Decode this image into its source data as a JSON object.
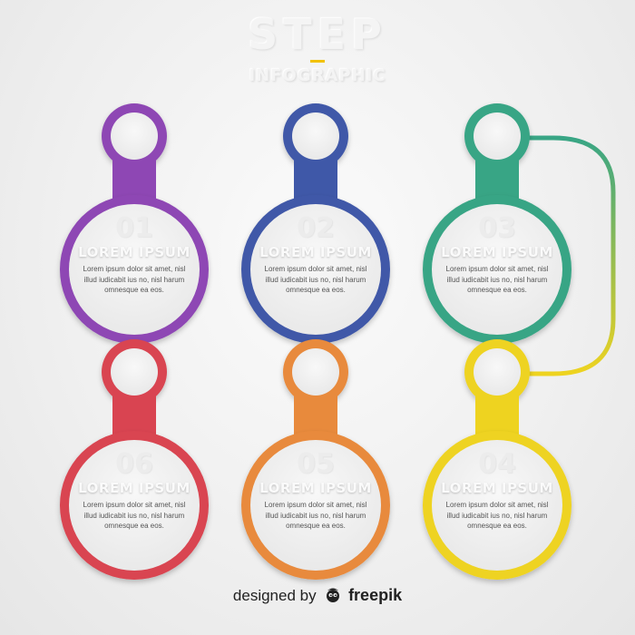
{
  "header": {
    "title": "STEP",
    "subtitle": "INFOGRAPHIC"
  },
  "steps": [
    {
      "number": "01",
      "heading": "LOREM IPSUM",
      "body": "Lorem ipsum dolor sit amet, nisl illud iudicabit ius no, nisl harum omnesque ea eos.",
      "color": "#8e47b4"
    },
    {
      "number": "02",
      "heading": "LOREM IPSUM",
      "body": "Lorem ipsum dolor sit amet, nisl illud iudicabit ius no, nisl harum omnesque ea eos.",
      "color": "#3f58a8"
    },
    {
      "number": "03",
      "heading": "LOREM IPSUM",
      "body": "Lorem ipsum dolor sit amet, nisl illud iudicabit ius no, nisl harum omnesque ea eos.",
      "color": "#38a585"
    },
    {
      "number": "04",
      "heading": "LOREM IPSUM",
      "body": "Lorem ipsum dolor sit amet, nisl illud iudicabit ius no, nisl harum omnesque ea eos.",
      "color": "#eed320"
    },
    {
      "number": "05",
      "heading": "LOREM IPSUM",
      "body": "Lorem ipsum dolor sit amet, nisl illud iudicabit ius no, nisl harum omnesque ea eos.",
      "color": "#e88a3c"
    },
    {
      "number": "06",
      "heading": "LOREM IPSUM",
      "body": "Lorem ipsum dolor sit amet, nisl illud iudicabit ius no, nisl harum omnesque ea eos.",
      "color": "#d94451"
    }
  ],
  "footer": {
    "prefix": "designed by",
    "brand": "freepik"
  }
}
